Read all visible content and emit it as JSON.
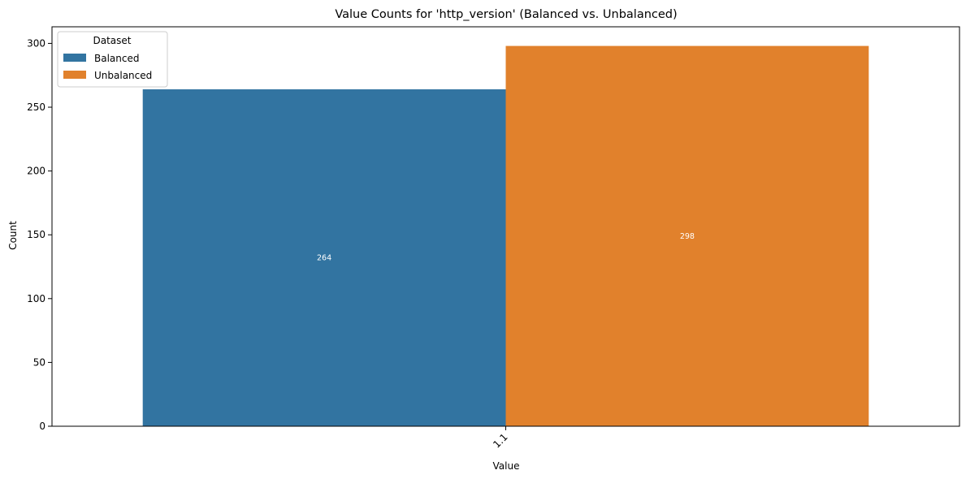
{
  "chart_data": {
    "type": "bar",
    "title": "Value Counts for 'http_version' (Balanced vs. Unbalanced)",
    "xlabel": "Value",
    "ylabel": "Count",
    "categories": [
      "1.1"
    ],
    "series": [
      {
        "name": "Balanced",
        "values": [
          264
        ],
        "color": "#3274a1"
      },
      {
        "name": "Unbalanced",
        "values": [
          298
        ],
        "color": "#e1812c"
      }
    ],
    "ylim": [
      0,
      313
    ],
    "yticks": [
      0,
      50,
      100,
      150,
      200,
      250,
      300
    ],
    "grid": false,
    "legend": {
      "title": "Dataset",
      "position": "top-left"
    },
    "bar_labels": [
      "264",
      "298"
    ]
  }
}
